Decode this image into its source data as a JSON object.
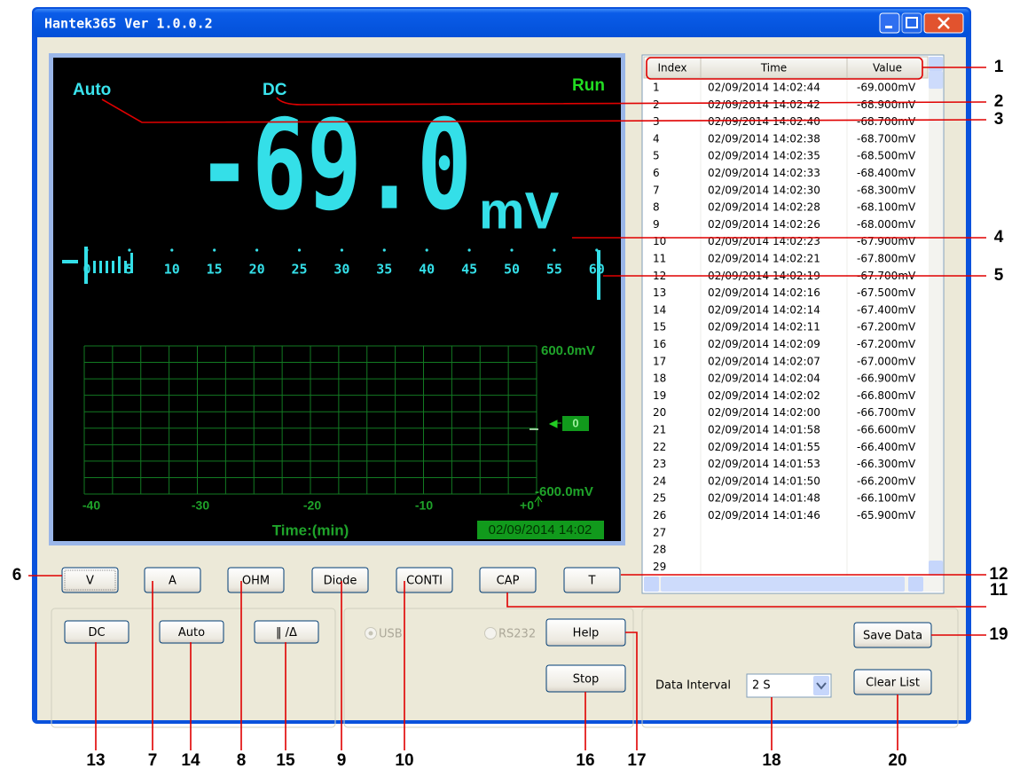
{
  "window": {
    "title": "Hantek365 Ver 1.0.0.2"
  },
  "display": {
    "range_mode": "Auto",
    "coupling": "DC",
    "status": "Run",
    "reading": "-69.0",
    "unit": "mV",
    "bar_scale": [
      "0",
      "5",
      "10",
      "15",
      "20",
      "25",
      "30",
      "35",
      "40",
      "45",
      "50",
      "55",
      "60"
    ],
    "graph": {
      "y_top": "600.0mV",
      "y_bottom": "-600.0mV",
      "zero_marker": "0",
      "x_labels": [
        "-40",
        "-30",
        "-20",
        "-10",
        "+0"
      ],
      "x_title": "Time:(min)",
      "timestamp": "02/09/2014 14:02"
    }
  },
  "table": {
    "headers": [
      "Index",
      "Time",
      "Value"
    ],
    "rows": [
      [
        "1",
        "02/09/2014  14:02:44",
        "-69.000mV"
      ],
      [
        "2",
        "02/09/2014  14:02:42",
        "-68.900mV"
      ],
      [
        "3",
        "02/09/2014  14:02:40",
        "-68.700mV"
      ],
      [
        "4",
        "02/09/2014  14:02:38",
        "-68.700mV"
      ],
      [
        "5",
        "02/09/2014  14:02:35",
        "-68.500mV"
      ],
      [
        "6",
        "02/09/2014  14:02:33",
        "-68.400mV"
      ],
      [
        "7",
        "02/09/2014  14:02:30",
        "-68.300mV"
      ],
      [
        "8",
        "02/09/2014  14:02:28",
        "-68.100mV"
      ],
      [
        "9",
        "02/09/2014  14:02:26",
        "-68.000mV"
      ],
      [
        "10",
        "02/09/2014  14:02:23",
        "-67.900mV"
      ],
      [
        "11",
        "02/09/2014  14:02:21",
        "-67.800mV"
      ],
      [
        "12",
        "02/09/2014  14:02:19",
        "-67.700mV"
      ],
      [
        "13",
        "02/09/2014  14:02:16",
        "-67.500mV"
      ],
      [
        "14",
        "02/09/2014  14:02:14",
        "-67.400mV"
      ],
      [
        "15",
        "02/09/2014  14:02:11",
        "-67.200mV"
      ],
      [
        "16",
        "02/09/2014  14:02:09",
        "-67.200mV"
      ],
      [
        "17",
        "02/09/2014  14:02:07",
        "-67.000mV"
      ],
      [
        "18",
        "02/09/2014  14:02:04",
        "-66.900mV"
      ],
      [
        "19",
        "02/09/2014  14:02:02",
        "-66.800mV"
      ],
      [
        "20",
        "02/09/2014  14:02:00",
        "-66.700mV"
      ],
      [
        "21",
        "02/09/2014  14:01:58",
        "-66.600mV"
      ],
      [
        "22",
        "02/09/2014  14:01:55",
        "-66.400mV"
      ],
      [
        "23",
        "02/09/2014  14:01:53",
        "-66.300mV"
      ],
      [
        "24",
        "02/09/2014  14:01:50",
        "-66.200mV"
      ],
      [
        "25",
        "02/09/2014  14:01:48",
        "-66.100mV"
      ],
      [
        "26",
        "02/09/2014  14:01:46",
        "-65.900mV"
      ],
      [
        "27"
      ],
      [
        "28"
      ],
      [
        "29"
      ]
    ]
  },
  "mode_buttons": [
    "V",
    "A",
    "OHM",
    "Diode",
    "CONTI",
    "CAP",
    "T"
  ],
  "left_buttons": [
    "DC",
    "Auto",
    "‖ /Δ"
  ],
  "ports": [
    "USB",
    "RS232"
  ],
  "action_buttons": [
    "Help",
    "Stop"
  ],
  "data_interval": {
    "label": "Data Interval",
    "value": "2 S"
  },
  "list_buttons": [
    "Save Data",
    "Clear List"
  ],
  "callouts": [
    "1",
    "2",
    "3",
    "4",
    "5",
    "6",
    "7",
    "8",
    "9",
    "10",
    "11",
    "12",
    "13",
    "14",
    "15",
    "16",
    "17",
    "18",
    "19",
    "20"
  ]
}
